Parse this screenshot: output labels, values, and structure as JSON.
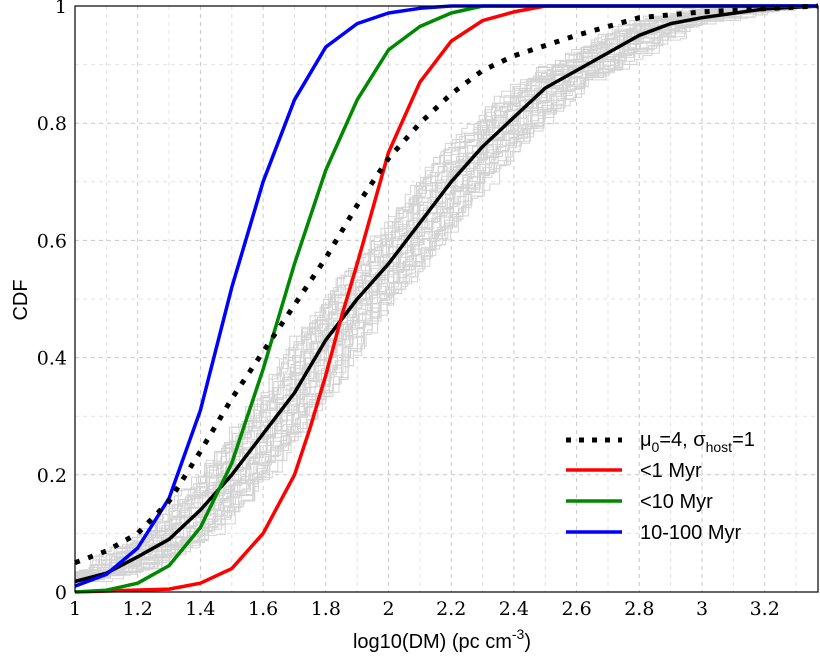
{
  "chart_data": {
    "type": "line",
    "xlabel": "log10(DM) (pc cm",
    "xlabel_sup": "-3",
    "xlabel_tail": ")",
    "ylabel": "CDF",
    "xlim": [
      1.0,
      3.37
    ],
    "ylim": [
      0,
      1
    ],
    "xticks": [
      "1",
      "1.2",
      "1.4",
      "1.6",
      "1.8",
      "2",
      "2.2",
      "2.4",
      "2.6",
      "2.8",
      "3",
      "3.2"
    ],
    "yticks": [
      "0",
      "0.2",
      "0.4",
      "0.6",
      "0.8",
      "1"
    ],
    "grid": true,
    "legend_position": "bottom-right",
    "legend": [
      {
        "label_parts": [
          "μ",
          "0",
          "=4, σ",
          "host",
          "=1"
        ],
        "style": "dotted",
        "color": "#000000"
      },
      {
        "label": "<1 Myr",
        "style": "solid",
        "color": "#ff0000"
      },
      {
        "label": "<10 Myr",
        "style": "solid",
        "color": "#008800"
      },
      {
        "label": "10-100 Myr",
        "style": "solid",
        "color": "#0000ff"
      }
    ],
    "background_realizations": {
      "count": 40,
      "color": "#d3d3d3",
      "style": "step"
    },
    "series": [
      {
        "name": "<1 Myr",
        "color": "#ff0000",
        "style": "solid",
        "points": [
          [
            1.0,
            0.0
          ],
          [
            1.3,
            0.005
          ],
          [
            1.4,
            0.015
          ],
          [
            1.5,
            0.04
          ],
          [
            1.6,
            0.1
          ],
          [
            1.7,
            0.2
          ],
          [
            1.75,
            0.28
          ],
          [
            1.8,
            0.37
          ],
          [
            1.85,
            0.47
          ],
          [
            1.9,
            0.56
          ],
          [
            2.0,
            0.75
          ],
          [
            2.1,
            0.87
          ],
          [
            2.2,
            0.94
          ],
          [
            2.3,
            0.975
          ],
          [
            2.4,
            0.99
          ],
          [
            2.5,
            1.0
          ],
          [
            3.37,
            1.0
          ]
        ]
      },
      {
        "name": "<10 Myr",
        "color": "#008800",
        "style": "solid",
        "points": [
          [
            1.0,
            0.0
          ],
          [
            1.1,
            0.003
          ],
          [
            1.2,
            0.015
          ],
          [
            1.3,
            0.045
          ],
          [
            1.4,
            0.11
          ],
          [
            1.5,
            0.22
          ],
          [
            1.6,
            0.38
          ],
          [
            1.7,
            0.56
          ],
          [
            1.8,
            0.72
          ],
          [
            1.9,
            0.84
          ],
          [
            2.0,
            0.925
          ],
          [
            2.1,
            0.965
          ],
          [
            2.2,
            0.988
          ],
          [
            2.3,
            1.0
          ],
          [
            3.37,
            1.0
          ]
        ]
      },
      {
        "name": "10-100 Myr",
        "color": "#0000ff",
        "style": "solid",
        "points": [
          [
            1.0,
            0.01
          ],
          [
            1.1,
            0.03
          ],
          [
            1.2,
            0.075
          ],
          [
            1.3,
            0.16
          ],
          [
            1.4,
            0.31
          ],
          [
            1.5,
            0.52
          ],
          [
            1.6,
            0.7
          ],
          [
            1.7,
            0.84
          ],
          [
            1.8,
            0.93
          ],
          [
            1.9,
            0.97
          ],
          [
            2.0,
            0.988
          ],
          [
            2.1,
            0.996
          ],
          [
            2.2,
            1.0
          ],
          [
            3.37,
            1.0
          ]
        ]
      },
      {
        "name": "μ0=4, σhost=1",
        "color": "#000000",
        "style": "dotted",
        "points": [
          [
            1.0,
            0.05
          ],
          [
            1.1,
            0.07
          ],
          [
            1.2,
            0.1
          ],
          [
            1.3,
            0.155
          ],
          [
            1.4,
            0.24
          ],
          [
            1.5,
            0.33
          ],
          [
            1.6,
            0.41
          ],
          [
            1.7,
            0.49
          ],
          [
            1.8,
            0.57
          ],
          [
            1.9,
            0.66
          ],
          [
            2.0,
            0.74
          ],
          [
            2.1,
            0.8
          ],
          [
            2.2,
            0.85
          ],
          [
            2.3,
            0.89
          ],
          [
            2.4,
            0.915
          ],
          [
            2.6,
            0.95
          ],
          [
            2.8,
            0.98
          ],
          [
            3.0,
            0.99
          ],
          [
            3.37,
            1.0
          ]
        ]
      },
      {
        "name": "mean",
        "color": "#000000",
        "style": "solid",
        "points": [
          [
            1.0,
            0.018
          ],
          [
            1.1,
            0.032
          ],
          [
            1.2,
            0.06
          ],
          [
            1.3,
            0.09
          ],
          [
            1.4,
            0.14
          ],
          [
            1.5,
            0.2
          ],
          [
            1.6,
            0.27
          ],
          [
            1.7,
            0.34
          ],
          [
            1.8,
            0.43
          ],
          [
            1.9,
            0.5
          ],
          [
            2.0,
            0.56
          ],
          [
            2.1,
            0.63
          ],
          [
            2.2,
            0.7
          ],
          [
            2.3,
            0.76
          ],
          [
            2.4,
            0.81
          ],
          [
            2.5,
            0.86
          ],
          [
            2.6,
            0.89
          ],
          [
            2.7,
            0.92
          ],
          [
            2.8,
            0.95
          ],
          [
            2.9,
            0.97
          ],
          [
            3.0,
            0.98
          ],
          [
            3.2,
            0.995
          ],
          [
            3.37,
            1.0
          ]
        ]
      }
    ]
  }
}
